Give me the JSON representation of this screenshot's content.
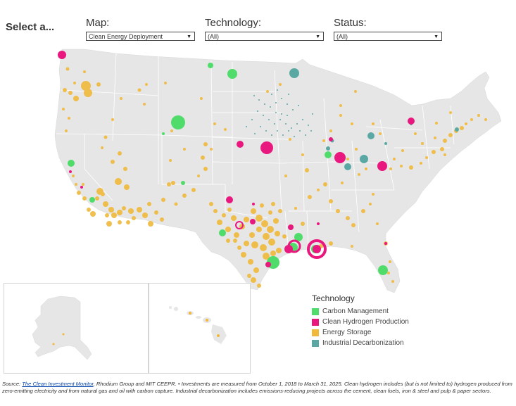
{
  "header": {
    "select_label": "Select a..."
  },
  "filters": {
    "map": {
      "label": "Map:",
      "value": "Clean Energy Deployment"
    },
    "technology": {
      "label": "Technology:",
      "value": "(All)"
    },
    "status": {
      "label": "Status:",
      "value": "(All)"
    }
  },
  "legend": {
    "title": "Technology",
    "items": [
      {
        "label": "Carbon Management",
        "color": "#4fdc6a"
      },
      {
        "label": "Clean Hydrogen Production",
        "color": "#e8187e"
      },
      {
        "label": "Energy Storage",
        "color": "#f0b93a"
      },
      {
        "label": "Industrial Decarbonization",
        "color": "#5aa8a4"
      }
    ]
  },
  "map": {
    "land_color": "#e6e6e6",
    "border_color": "#ffffff",
    "insets": [
      "Alaska",
      "Hawaii"
    ]
  },
  "source": {
    "prefix": "Source: ",
    "link_text": "The Clean Investment Monitor",
    "text": ", Rhodium Group and MIT CEEPR. • Investments are measured from October 1, 2018 to March 31, 2025. Clean hydrogen includes (but is not limited to) hydrogen produced from zero-emitting electricity and from natural gas and oil with carbon capture. Industrial decarbonization includes emissions-reducing projects across the cement, clean fuels, iron & steel and pulp & paper sectors."
  }
}
